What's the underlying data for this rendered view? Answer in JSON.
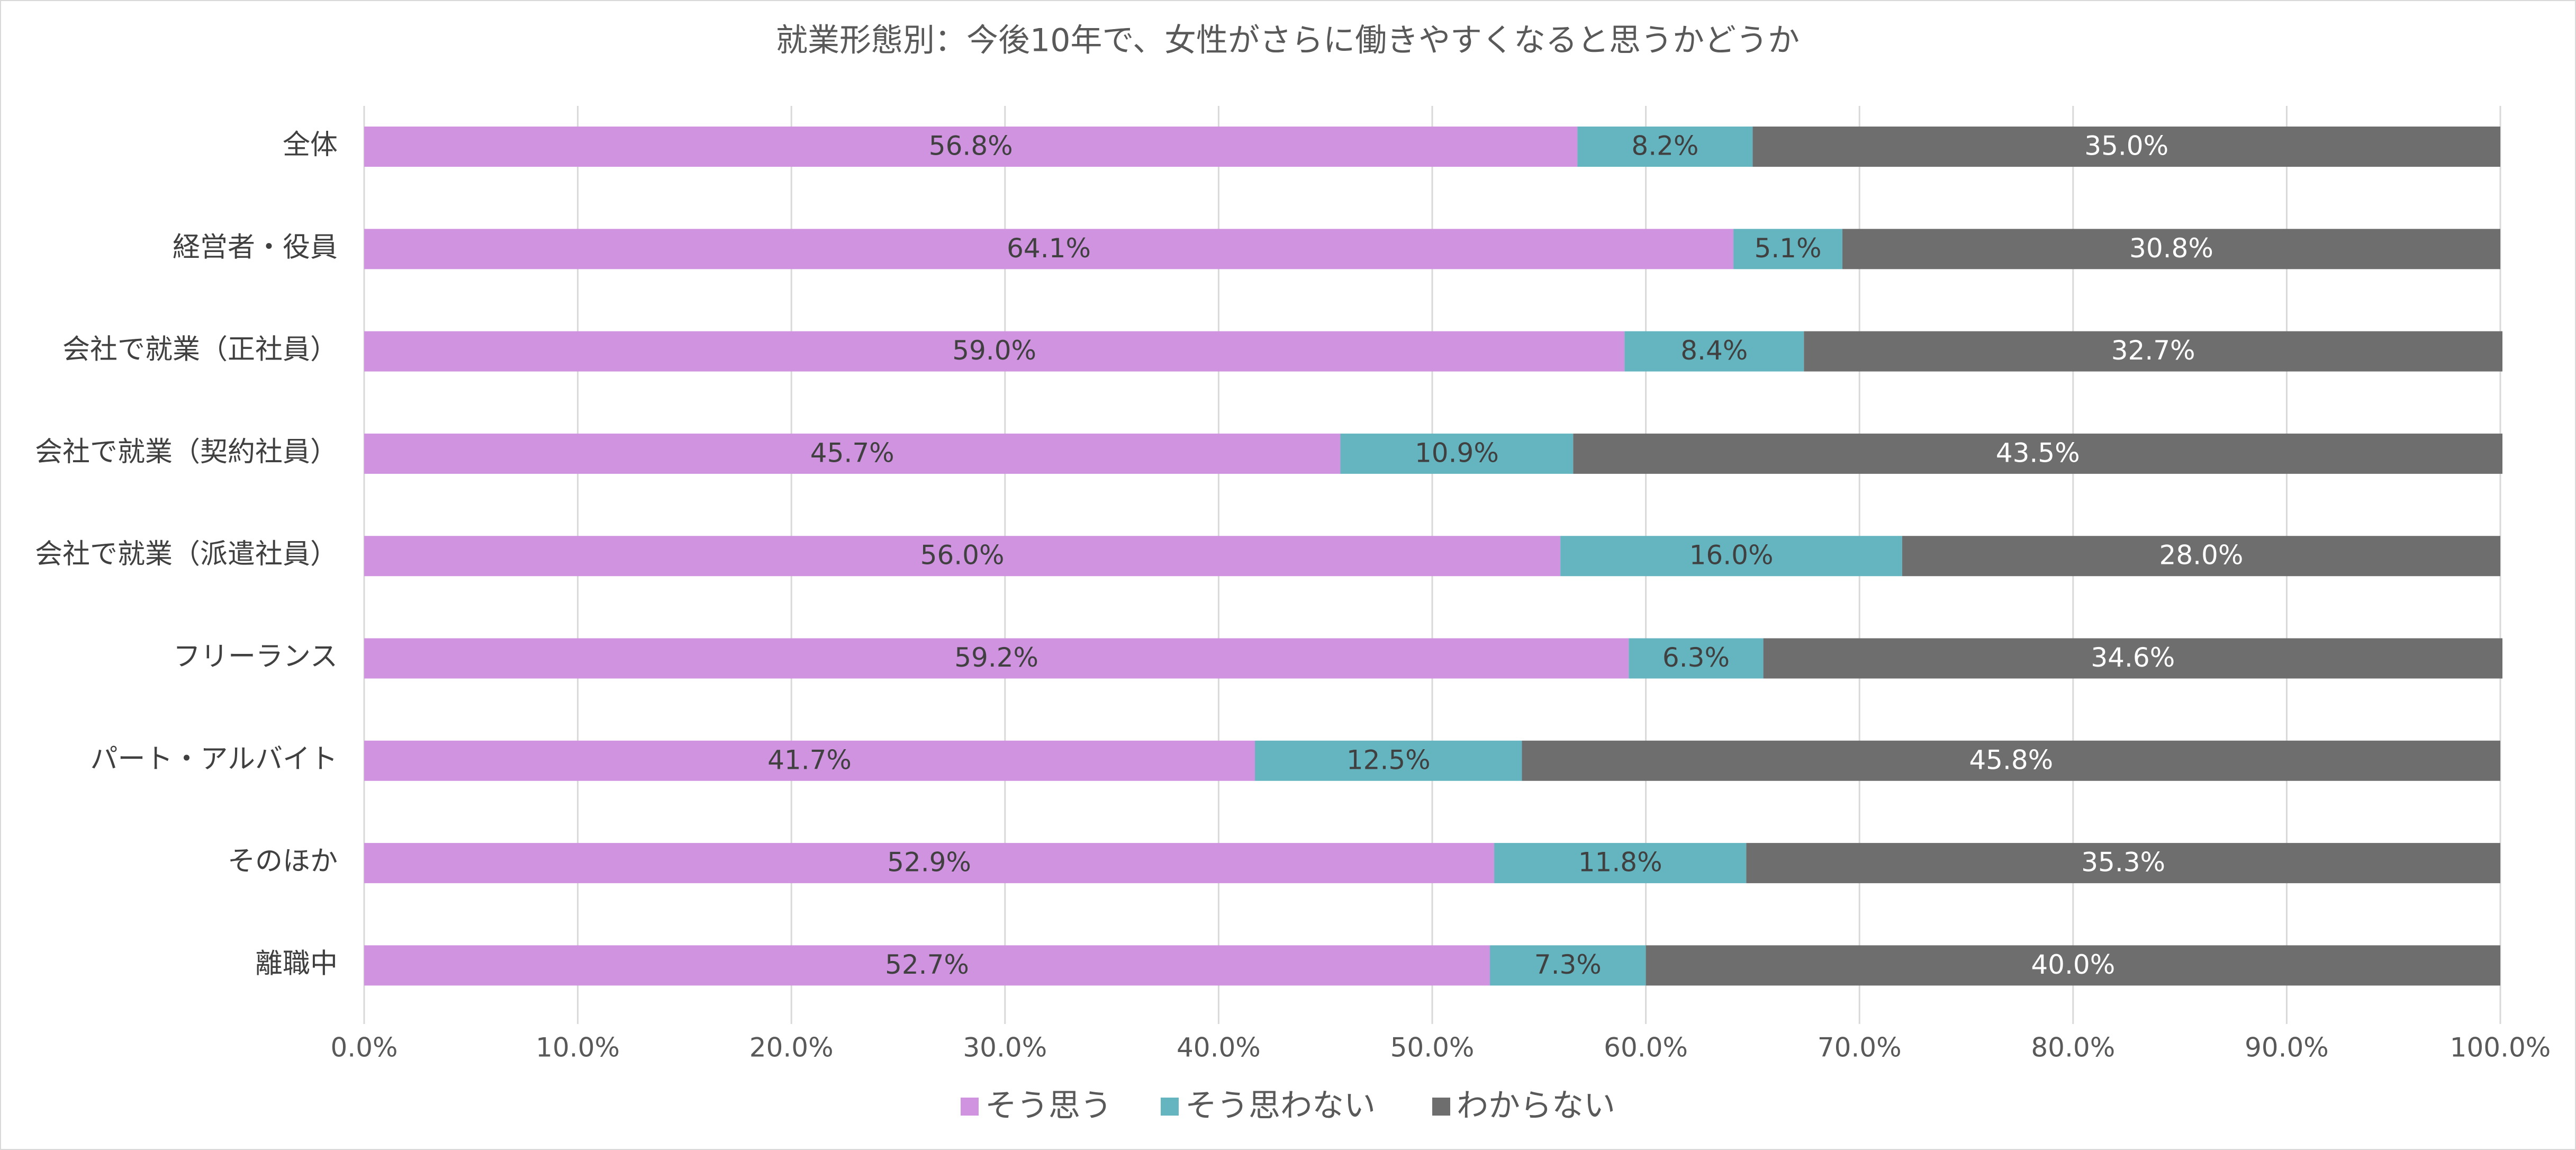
{
  "chart_data": {
    "type": "bar",
    "orientation": "horizontal",
    "stacked": true,
    "title": "就業形態別：今後10年で、女性がさらに働きやすくなると思うかどうか",
    "categories": [
      "全体",
      "経営者・役員",
      "会社で就業（正社員）",
      "会社で就業（契約社員）",
      "会社で就業（派遣社員）",
      "フリーランス",
      "パート・アルバイト",
      "そのほか",
      "離職中"
    ],
    "series": [
      {
        "name": "そう思う",
        "color": "#cf93e0",
        "values": [
          56.8,
          64.1,
          59.0,
          45.7,
          56.0,
          59.2,
          41.7,
          52.9,
          52.7
        ],
        "labels": [
          "56.8%",
          "64.1%",
          "59.0%",
          "45.7%",
          "56.0%",
          "59.2%",
          "41.7%",
          "52.9%",
          "52.7%"
        ]
      },
      {
        "name": "そう思わない",
        "color": "#64b5c0",
        "values": [
          8.2,
          5.1,
          8.4,
          10.9,
          16.0,
          6.3,
          12.5,
          11.8,
          7.3
        ],
        "labels": [
          "8.2%",
          "5.1%",
          "8.4%",
          "10.9%",
          "16.0%",
          "6.3%",
          "12.5%",
          "11.8%",
          "7.3%"
        ]
      },
      {
        "name": "わからない",
        "color": "#6f6e6e",
        "values": [
          35.0,
          30.8,
          32.7,
          43.5,
          28.0,
          34.6,
          45.8,
          35.3,
          40.0
        ],
        "labels": [
          "35.0%",
          "30.8%",
          "32.7%",
          "43.5%",
          "28.0%",
          "34.6%",
          "45.8%",
          "35.3%",
          "40.0%"
        ]
      }
    ],
    "xlim": [
      0,
      100
    ],
    "xticks": [
      "0.0%",
      "10.0%",
      "20.0%",
      "30.0%",
      "40.0%",
      "50.0%",
      "60.0%",
      "70.0%",
      "80.0%",
      "90.0%",
      "100.0%"
    ],
    "grid": "vertical",
    "legend": "bottom"
  }
}
